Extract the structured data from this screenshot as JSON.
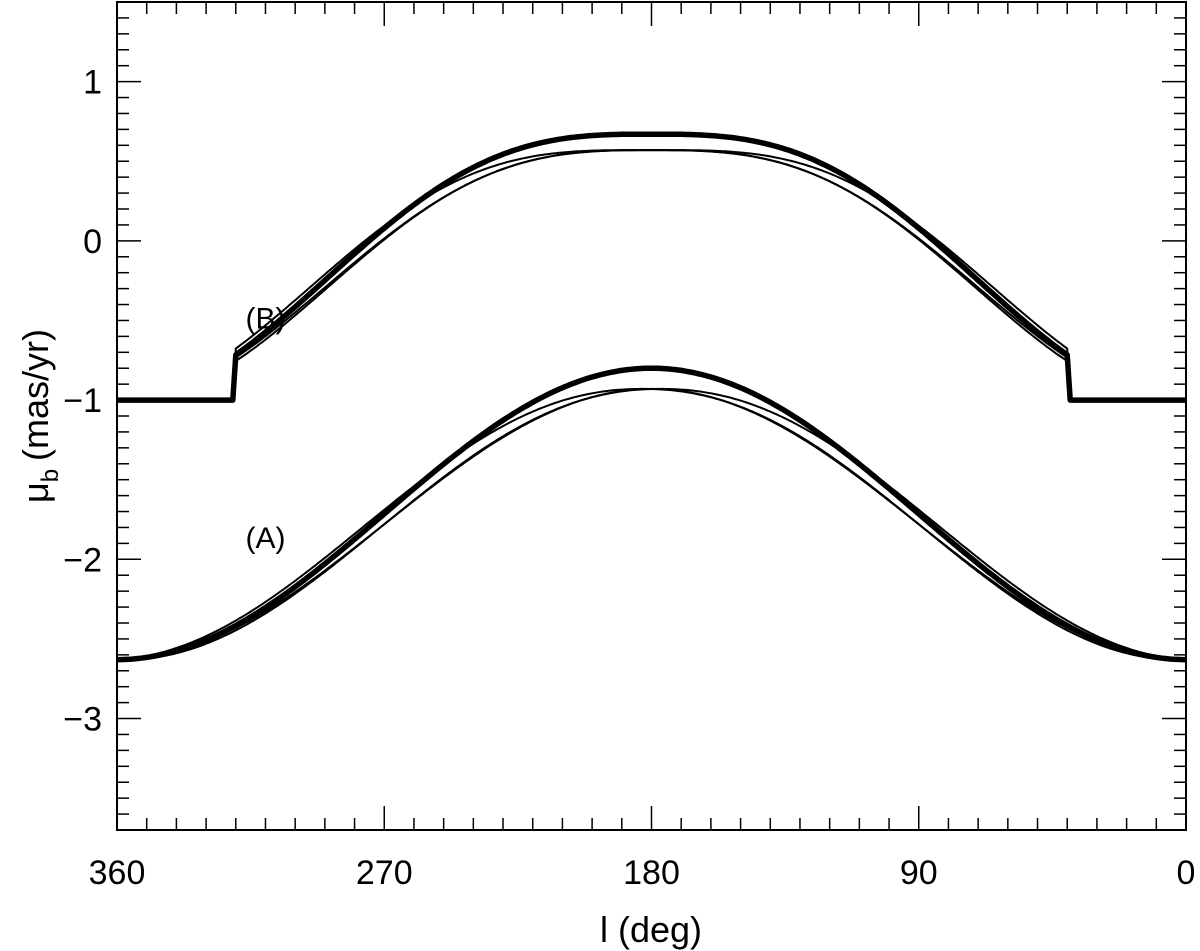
{
  "chart_data": {
    "type": "line",
    "xlabel": "l (deg)",
    "ylabel_symbol": "μ",
    "ylabel_subscript": "b",
    "ylabel_unit": "(mas/yr)",
    "xlim": [
      360,
      0
    ],
    "ylim": [
      -3.7,
      1.5
    ],
    "x_reversed": true,
    "xticks": [
      360,
      270,
      180,
      90,
      0
    ],
    "xtick_labels": [
      "360",
      "270",
      "180",
      "90",
      "0"
    ],
    "yticks": [
      1,
      0,
      -1,
      -2,
      -3
    ],
    "ytick_labels": [
      "1",
      "0",
      "−1",
      "−2",
      "−3"
    ],
    "grid": false,
    "annotations": [
      {
        "text": "(B)",
        "x": 310,
        "y": -0.55
      },
      {
        "text": "(A)",
        "x": 310,
        "y": -1.93
      }
    ],
    "series": [
      {
        "group": "A",
        "style": "thick",
        "model": {
          "l0": 180,
          "center": -1.715,
          "amp": 0.915,
          "power": 1
        }
      },
      {
        "group": "A",
        "style": "thin",
        "model": {
          "l0": 180,
          "center": -1.78,
          "amp": 0.85,
          "power": 1
        }
      },
      {
        "group": "A",
        "style": "thin",
        "model": {
          "l0": 183,
          "center": -1.78,
          "amp": 0.85,
          "power": 1.08
        }
      },
      {
        "group": "A",
        "style": "thin",
        "model": {
          "l0": 177,
          "center": -1.78,
          "amp": 0.85,
          "power": 1.08
        }
      },
      {
        "group": "B",
        "style": "thick",
        "model": {
          "l0": 180,
          "center": -0.165,
          "amp": 0.835,
          "power": 1.5,
          "floor_below": 40,
          "floor_above": 320
        }
      },
      {
        "group": "B",
        "style": "thin",
        "model": {
          "l0": 180,
          "center": -0.215,
          "amp": 0.785,
          "power": 1.5,
          "floor_below": 40,
          "floor_above": 320
        }
      },
      {
        "group": "B",
        "style": "thin",
        "model": {
          "l0": 183,
          "center": -0.215,
          "amp": 0.785,
          "power": 1.6,
          "floor_below": 40,
          "floor_above": 320
        }
      },
      {
        "group": "B",
        "style": "thin",
        "model": {
          "l0": 177,
          "center": -0.215,
          "amp": 0.785,
          "power": 1.6,
          "floor_below": 40,
          "floor_above": 320
        }
      }
    ]
  }
}
